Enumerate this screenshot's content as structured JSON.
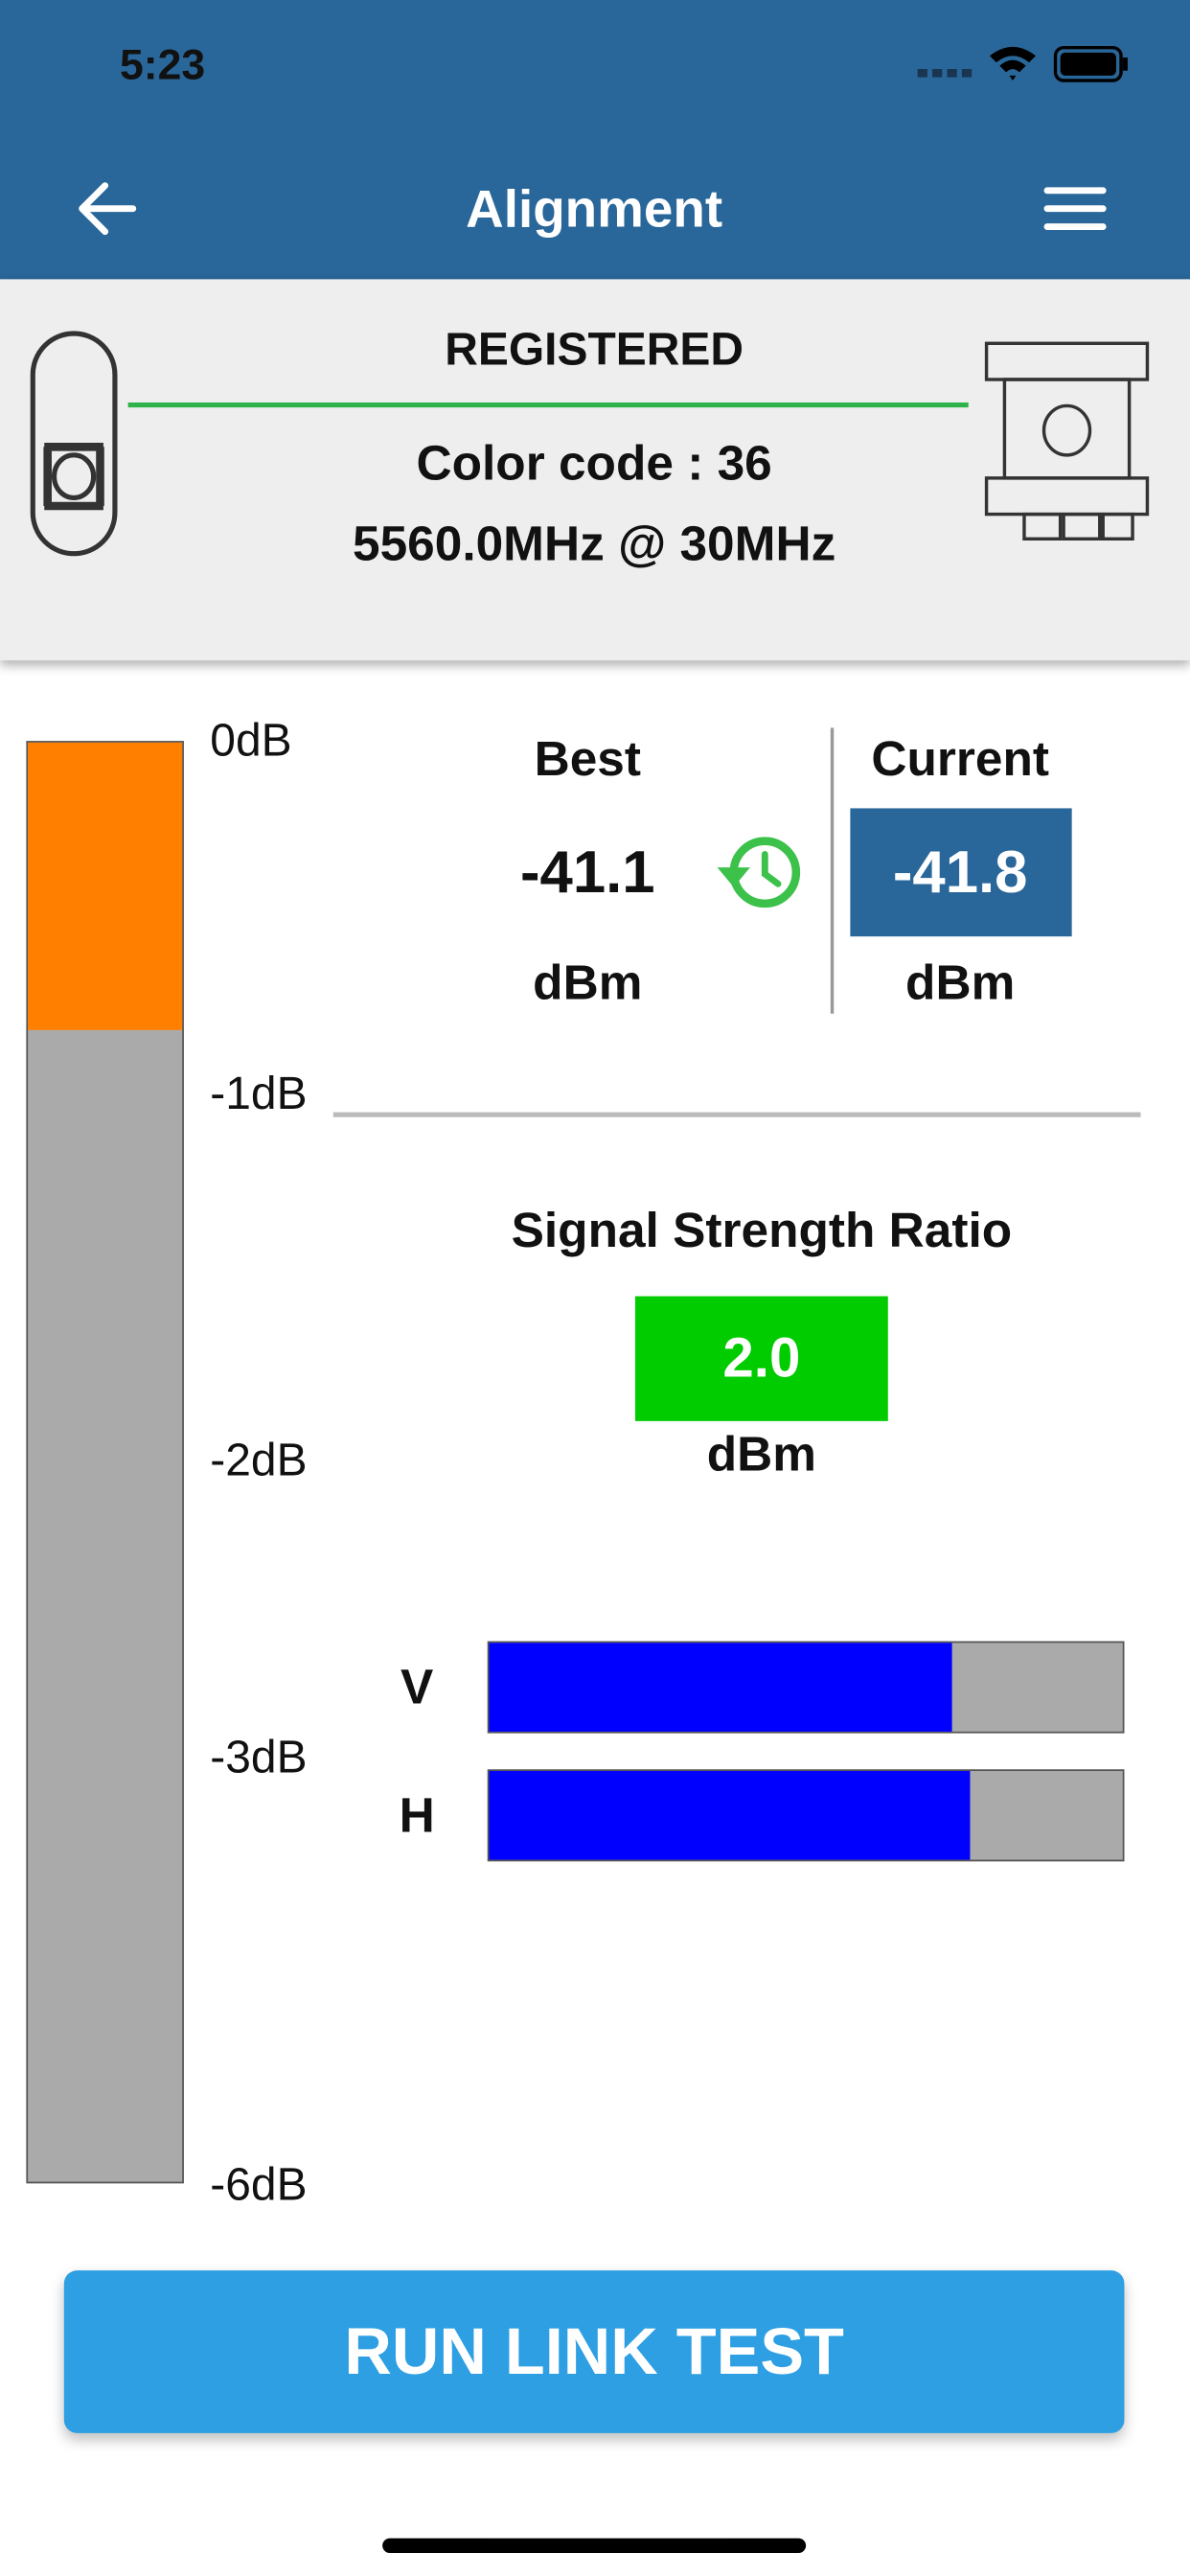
{
  "status_bar": {
    "time": "5:23"
  },
  "header": {
    "title": "Alignment"
  },
  "link_panel": {
    "status": "REGISTERED",
    "color_code": "Color code : 36",
    "frequency": "5560.0MHz @ 30MHz"
  },
  "meter": {
    "scale_labels": [
      "0dB",
      "-1dB",
      "-2dB",
      "-3dB",
      "-6dB"
    ],
    "fill_fraction": 0.2
  },
  "readings": {
    "best": {
      "label": "Best",
      "value": "-41.1",
      "unit": "dBm"
    },
    "current": {
      "label": "Current",
      "value": "-41.8",
      "unit": "dBm"
    }
  },
  "ratio": {
    "label": "Signal Strength Ratio",
    "value": "2.0",
    "unit": "dBm"
  },
  "polarization": [
    {
      "label": "V",
      "fraction": 0.73
    },
    {
      "label": "H",
      "fraction": 0.76
    }
  ],
  "button": {
    "label": "RUN LINK TEST"
  }
}
